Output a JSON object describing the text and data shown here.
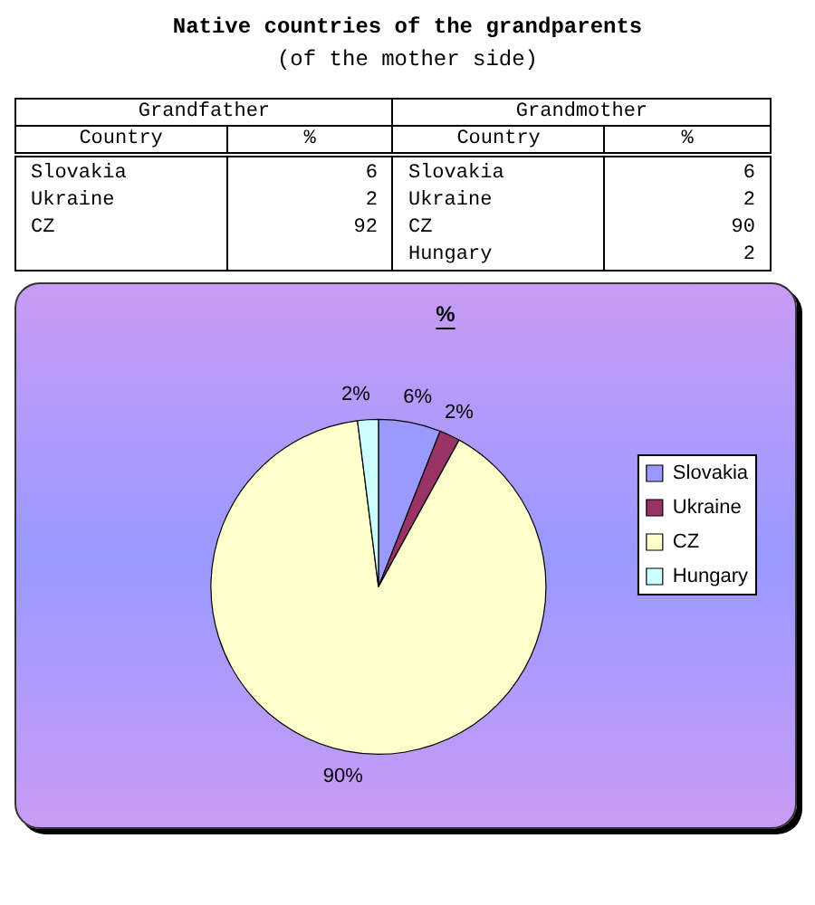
{
  "chart_data": [
    {
      "type": "other",
      "title": "Native countries of the grandparents",
      "subtitle": "(of the mother side)",
      "xlabel": "Country",
      "ylabel": "%",
      "data_labels": true,
      "categories": [
        "Slovakia",
        "Ukraine",
        "CZ",
        "Hungary"
      ],
      "series": [
        {
          "name": "Grandfather",
          "values": [
            6,
            2,
            92,
            null
          ]
        },
        {
          "name": "Grandmother",
          "values": [
            6,
            2,
            90,
            2
          ]
        }
      ]
    },
    {
      "type": "pie",
      "title": "%",
      "categories": [
        "Slovakia",
        "Ukraine",
        "CZ",
        "Hungary"
      ],
      "values": [
        6,
        2,
        90,
        2
      ],
      "colors": [
        "#9999ff",
        "#993366",
        "#ffffcc",
        "#ccffff"
      ],
      "value_labels": [
        "6%",
        "2%",
        "90%",
        "2%"
      ],
      "legend": "right"
    }
  ]
}
